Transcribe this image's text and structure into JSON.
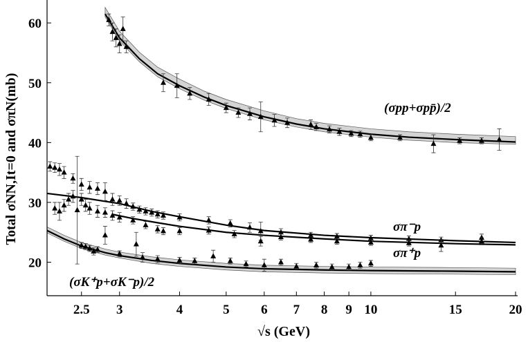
{
  "chart_data": {
    "type": "scatter",
    "xlabel": "√s (GeV)",
    "ylabel": "Total σNN,It=0 and σπN(mb)",
    "xscale": "log",
    "xlim": [
      2.12,
      20.2
    ],
    "ylim": [
      14.4,
      63.6
    ],
    "xticks": [
      2.5,
      3,
      4,
      5,
      6,
      7,
      8,
      9,
      10,
      15,
      20
    ],
    "yticks": [
      20,
      30,
      40,
      50,
      60
    ],
    "color": "#000000",
    "band_color": "#d4d4d4",
    "annotations": [
      "(σpp+σpp̄)/2",
      "σπ⁻p",
      "σπ⁺p",
      "(σK⁺p+σK⁻p)/2"
    ],
    "curves": [
      {
        "x": [
          2.8,
          3,
          3.3,
          3.6,
          4,
          4.5,
          5,
          6,
          7,
          8,
          10,
          12,
          15,
          20
        ],
        "values": [
          61.5,
          57.5,
          54,
          51.5,
          49.5,
          47.6,
          46.2,
          44.3,
          43.1,
          42.3,
          41.4,
          40.9,
          40.5,
          40.1
        ],
        "band_low": [
          61,
          57,
          53.5,
          51,
          49,
          47.1,
          45.7,
          43.8,
          42.6,
          41.8,
          40.9,
          40.4,
          40,
          39.7
        ],
        "band_high": [
          62.6,
          58.6,
          55.1,
          52.6,
          50.6,
          48.6,
          47.2,
          45.3,
          44,
          43.2,
          42.3,
          41.8,
          41.4,
          41
        ]
      },
      {
        "x": [
          2.12,
          2.5,
          3,
          3.5,
          4,
          5,
          6,
          8,
          10,
          15,
          20
        ],
        "values": [
          31.5,
          30.8,
          29.8,
          28.5,
          27.6,
          26.2,
          25.3,
          24.5,
          24.1,
          23.6,
          23.3
        ]
      },
      {
        "x": [
          2.9,
          3.2,
          3.6,
          4,
          5,
          6,
          8,
          10,
          15,
          20
        ],
        "values": [
          28,
          27.3,
          26.6,
          26,
          25,
          24.5,
          23.9,
          23.5,
          23.1,
          22.9
        ]
      },
      {
        "x": [
          2.12,
          2.3,
          2.5,
          2.8,
          3,
          3.5,
          4,
          5,
          6,
          8,
          10,
          15,
          20
        ],
        "values": [
          25.3,
          23.9,
          22.7,
          21.6,
          21.1,
          20.3,
          19.8,
          19.2,
          18.9,
          18.7,
          18.6,
          18.5,
          18.4
        ],
        "band_low": [
          24.9,
          23.5,
          22.3,
          21.2,
          20.7,
          19.8,
          19.3,
          18.7,
          18.4,
          18.2,
          18.1,
          18,
          17.9
        ],
        "band_high": [
          25.9,
          24.5,
          23.3,
          22.2,
          21.7,
          20.9,
          20.4,
          19.8,
          19.5,
          19.3,
          19.2,
          19.1,
          19
        ]
      }
    ],
    "points": [
      {
        "x": [
          2.85,
          2.9,
          2.95,
          3.0,
          3.05,
          3.1,
          3.7,
          3.95,
          4.2,
          4.6,
          5.0,
          5.3,
          5.6,
          5.9,
          6.3,
          6.7,
          7.5,
          7.7,
          8.2,
          8.6,
          9.1,
          9.5,
          10,
          11.5,
          13.5,
          15.3,
          17,
          18.5
        ],
        "values": [
          60.5,
          58.5,
          57.5,
          56.5,
          59,
          56,
          50,
          49.5,
          48.2,
          47.2,
          45.8,
          45,
          44.8,
          44.3,
          43.7,
          43.3,
          43,
          42.6,
          42.2,
          41.8,
          41.5,
          41.4,
          40.8,
          40.8,
          39.8,
          40.3,
          40.3,
          40.5
        ],
        "errors": [
          1,
          1.5,
          1.5,
          1.5,
          2,
          1,
          1.5,
          2,
          1,
          1,
          0.8,
          0.8,
          1,
          2.5,
          1,
          0.8,
          0.8,
          0.6,
          0.6,
          0.6,
          0.5,
          0.5,
          0.5,
          0.5,
          1.5,
          0.5,
          0.5,
          1.8
        ]
      },
      {
        "x": [
          2.15,
          2.2,
          2.25,
          2.3,
          2.4,
          2.5,
          2.6,
          2.7,
          2.8,
          2.9,
          3.0,
          3.1,
          3.2,
          3.3,
          3.4,
          3.5,
          3.6,
          3.7,
          4.0,
          4.6,
          5.1,
          5.6,
          5.9,
          6.5,
          7.5,
          8.5,
          10,
          12,
          14,
          17
        ],
        "values": [
          36,
          35.8,
          35.5,
          35,
          34,
          33,
          32.5,
          32.3,
          31.8,
          30.5,
          30.3,
          29.8,
          29.3,
          28.8,
          28.5,
          28.3,
          28,
          27.8,
          27.5,
          27,
          26.5,
          25.8,
          25.2,
          25,
          24.5,
          24.3,
          24,
          23.9,
          23.7,
          24.1
        ],
        "errors": [
          0.8,
          0.8,
          1,
          1,
          0.8,
          1,
          1,
          1,
          1.5,
          1,
          0.8,
          0.8,
          0.6,
          0.6,
          0.6,
          0.6,
          0.6,
          0.6,
          0.6,
          0.6,
          0.6,
          0.8,
          1.5,
          0.6,
          0.5,
          0.5,
          0.5,
          0.5,
          0.5,
          0.6
        ]
      },
      {
        "x": [
          2.2,
          2.25,
          2.3,
          2.35,
          2.4,
          2.5,
          2.55,
          2.6,
          2.7,
          2.8,
          2.9,
          3.0,
          3.2,
          3.4,
          3.6,
          3.7,
          4.0,
          4.6,
          5.2,
          5.9,
          6.5,
          7.5,
          8.5,
          10,
          12,
          14,
          17
        ],
        "values": [
          29,
          28.5,
          29.5,
          30.5,
          31,
          30.5,
          29.5,
          29,
          28.5,
          28.3,
          27.8,
          27.5,
          27,
          26.2,
          25.5,
          25.2,
          25.2,
          25.3,
          24.7,
          23.5,
          24.2,
          23.8,
          23.5,
          23.3,
          23.2,
          22.8,
          23.5
        ],
        "errors": [
          1,
          1.5,
          1,
          1,
          1,
          1,
          1,
          1,
          1,
          0.8,
          0.8,
          0.8,
          0.6,
          0.6,
          0.6,
          0.6,
          0.6,
          0.6,
          0.6,
          0.8,
          0.5,
          0.5,
          0.5,
          0.5,
          0.5,
          1,
          0.6
        ]
      },
      {
        "x": [
          2.45,
          2.5,
          2.55,
          2.6,
          2.65,
          2.7,
          2.8,
          3.0,
          3.25,
          3.35,
          3.6,
          4.0,
          4.3,
          4.7,
          5.1,
          5.5,
          6.0,
          6.5,
          7.0,
          7.7,
          8.3,
          9.0,
          9.5,
          10.0
        ],
        "values": [
          28.7,
          22.8,
          22.6,
          22.3,
          21.8,
          22.1,
          24.5,
          21.4,
          23,
          20.8,
          20.5,
          20.3,
          20.2,
          21,
          20.2,
          19.7,
          19.5,
          20,
          19.3,
          19.5,
          19.2,
          19.2,
          19.5,
          19.8
        ],
        "errors": [
          9,
          0.5,
          0.5,
          0.5,
          0.6,
          0.5,
          1.5,
          0.5,
          2,
          0.8,
          0.6,
          0.5,
          0.5,
          1,
          0.5,
          0.5,
          1,
          0.5,
          0.5,
          0.5,
          0.5,
          0.5,
          0.5,
          0.5
        ]
      }
    ]
  }
}
